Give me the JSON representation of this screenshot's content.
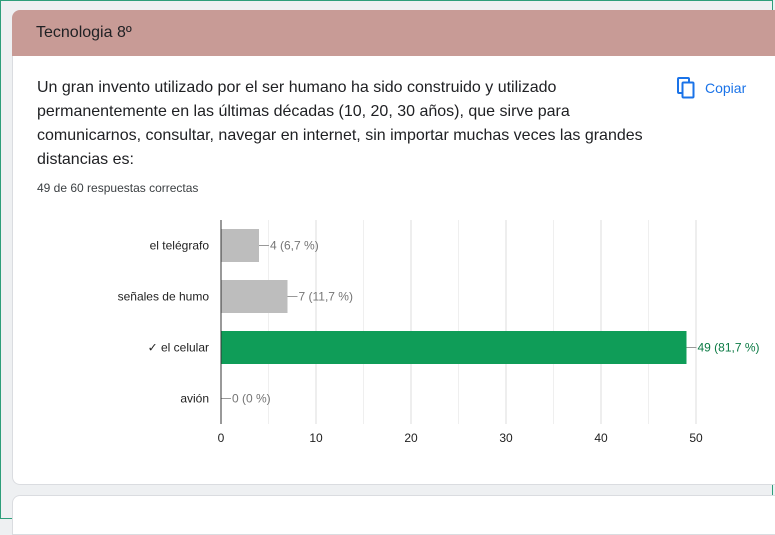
{
  "header": {
    "title": "Tecnologia 8º"
  },
  "question": {
    "text": "Un gran invento utilizado por el ser humano ha sido construido y utilizado permanentemente en las últimas décadas (10, 20, 30 años), que sirve para comunicarnos, consultar, navegar en internet, sin importar muchas veces las grandes distancias es:",
    "copy_label": "Copiar",
    "copy_icon": "copy-icon",
    "summary": "49 de 60 respuestas correctas"
  },
  "colors": {
    "header_bg": "#c89b96",
    "bar_default": "#bdbdbd",
    "bar_correct": "#0f9d58",
    "accent": "#1a73e8"
  },
  "chart_data": {
    "type": "bar",
    "orientation": "horizontal",
    "categories": [
      "el telégrafo",
      "señales de humo",
      "✓ el celular",
      "avión"
    ],
    "values": [
      4,
      7,
      49,
      0
    ],
    "data_labels": [
      "4 (6,7 %)",
      "7 (11,7 %)",
      "49 (81,7 %)",
      "0 (0 %)"
    ],
    "correct_index": 2,
    "xlim": [
      0,
      50
    ],
    "xticks": [
      0,
      10,
      20,
      30,
      40,
      50
    ],
    "grid": true,
    "title": "",
    "xlabel": "",
    "ylabel": ""
  }
}
